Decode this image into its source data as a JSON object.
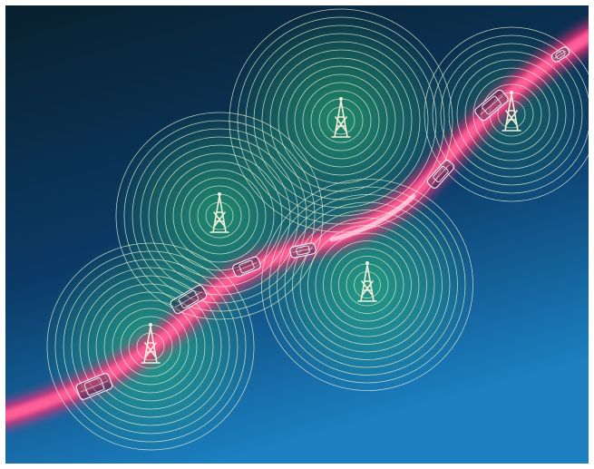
{
  "image": {
    "subject": "cellular-network-illustration",
    "colors": {
      "sky_top": "#09202e",
      "sky_mid": "#0b3a66",
      "sky_bottom": "#1b7fc0",
      "road": "#ff2f78",
      "road_core": "#ffd0e6",
      "coverage_glow": "#35d07a",
      "rings": "#e8f2d0",
      "towers": "#f4f0dc",
      "cars": "#f0f0ff"
    },
    "towers": [
      {
        "name": "tower-1",
        "icon": "radio-tower-icon",
        "rings": 12
      },
      {
        "name": "tower-2",
        "icon": "radio-tower-icon",
        "rings": 12
      },
      {
        "name": "tower-3",
        "icon": "radio-tower-icon",
        "rings": 13
      },
      {
        "name": "tower-4",
        "icon": "radio-tower-icon",
        "rings": 13
      },
      {
        "name": "tower-5",
        "icon": "radio-tower-icon",
        "rings": 10
      }
    ],
    "vehicles": [
      {
        "name": "car-1",
        "icon": "car-outline-icon"
      },
      {
        "name": "car-2",
        "icon": "car-outline-icon"
      },
      {
        "name": "car-3",
        "icon": "car-outline-icon"
      },
      {
        "name": "car-4",
        "icon": "car-outline-icon"
      },
      {
        "name": "car-5",
        "icon": "car-outline-icon"
      },
      {
        "name": "car-6",
        "icon": "car-outline-icon"
      },
      {
        "name": "car-7",
        "icon": "car-outline-icon"
      }
    ]
  }
}
